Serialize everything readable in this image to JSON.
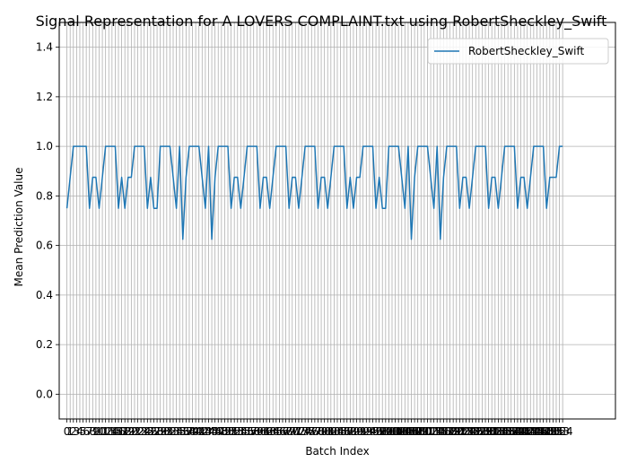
{
  "chart_data": {
    "type": "line",
    "title": "Signal Representation for A LOVERS COMPLAINT.txt using RobertSheckley_Swift",
    "xlabel": "Batch Index",
    "ylabel": "Mean Prediction Value",
    "xlim": [
      -2.4,
      170.4
    ],
    "ylim": [
      -0.1,
      1.5
    ],
    "yticks": [
      0.0,
      0.2,
      0.4,
      0.6,
      0.8,
      1.0,
      1.2,
      1.4
    ],
    "ytick_labels": [
      "0.0",
      "0.2",
      "0.4",
      "0.6",
      "0.8",
      "1.0",
      "1.2",
      "1.4"
    ],
    "grid": true,
    "legend_position": "top-right",
    "series": [
      {
        "name": "RobertSheckley_Swift",
        "color": "#1f77b4",
        "values": [
          0.75,
          0.875,
          1.0,
          1.0,
          1.0,
          1.0,
          1.0,
          0.75,
          0.875,
          0.875,
          0.75,
          0.875,
          1.0,
          1.0,
          1.0,
          1.0,
          0.75,
          0.875,
          0.75,
          0.875,
          0.875,
          1.0,
          1.0,
          1.0,
          1.0,
          0.75,
          0.875,
          0.75,
          0.75,
          1.0,
          1.0,
          1.0,
          1.0,
          0.875,
          0.75,
          1.0,
          0.625,
          0.875,
          1.0,
          1.0,
          1.0,
          1.0,
          0.875,
          0.75,
          1.0,
          0.625,
          0.875,
          1.0,
          1.0,
          1.0,
          1.0,
          0.75,
          0.875,
          0.875,
          0.75,
          0.875,
          1.0,
          1.0,
          1.0,
          1.0,
          0.75,
          0.875,
          0.875,
          0.75,
          0.875,
          1.0,
          1.0,
          1.0,
          1.0,
          0.75,
          0.875,
          0.875,
          0.75,
          0.875,
          1.0,
          1.0,
          1.0,
          1.0,
          0.75,
          0.875,
          0.875,
          0.75,
          0.875,
          1.0,
          1.0,
          1.0,
          1.0,
          0.75,
          0.875,
          0.75,
          0.875,
          0.875,
          1.0,
          1.0,
          1.0,
          1.0,
          0.75,
          0.875,
          0.75,
          0.75,
          1.0,
          1.0,
          1.0,
          1.0,
          0.875,
          0.75,
          1.0,
          0.625,
          0.875,
          1.0,
          1.0,
          1.0,
          1.0,
          0.875,
          0.75,
          1.0,
          0.625,
          0.875,
          1.0,
          1.0,
          1.0,
          1.0,
          0.75,
          0.875,
          0.875,
          0.75,
          0.875,
          1.0,
          1.0,
          1.0,
          1.0,
          0.75,
          0.875,
          0.875,
          0.75,
          0.875,
          1.0,
          1.0,
          1.0,
          1.0,
          0.75,
          0.875,
          0.875,
          0.75,
          0.875,
          1.0,
          1.0,
          1.0,
          1.0,
          0.75,
          0.875,
          0.875,
          0.875,
          1.0,
          1.0
        ]
      }
    ]
  }
}
